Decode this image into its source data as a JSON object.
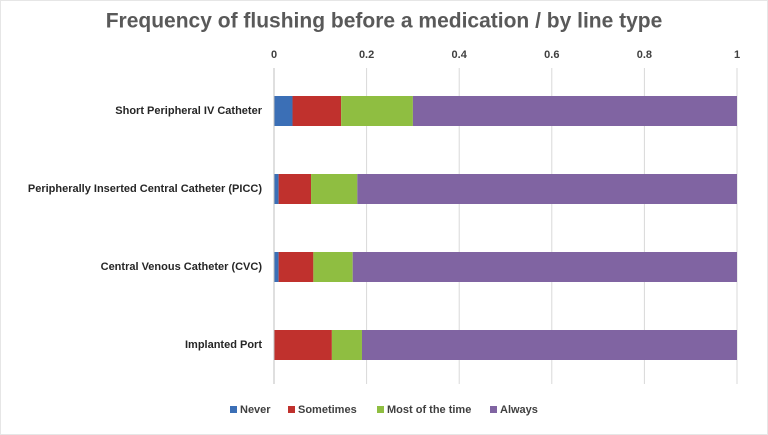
{
  "chart_data": {
    "type": "stacked-bar-horizontal",
    "title": "Frequency of flushing before a medication / by line type",
    "categories": [
      "Short Peripheral IV Catheter",
      "Peripherally Inserted Central Catheter (PICC)",
      "Central Venous Catheter (CVC)",
      "Implanted Port"
    ],
    "series": [
      {
        "name": "Never",
        "color": "#3b6fb6",
        "values": [
          0.04,
          0.01,
          0.01,
          0
        ]
      },
      {
        "name": "Sometimes",
        "color": "#c0312d",
        "values": [
          0.105,
          0.07,
          0.075,
          0.125
        ]
      },
      {
        "name": "Most of the time",
        "color": "#8fbe41",
        "values": [
          0.155,
          0.1,
          0.085,
          0.065
        ]
      },
      {
        "name": "Always",
        "color": "#8064a2",
        "values": [
          0.7,
          0.82,
          0.83,
          0.81
        ]
      }
    ],
    "xlim": [
      0,
      1
    ],
    "xticks": [
      0,
      0.2,
      0.4,
      0.6,
      0.8,
      1
    ],
    "grid": true,
    "legend": "bottom"
  }
}
